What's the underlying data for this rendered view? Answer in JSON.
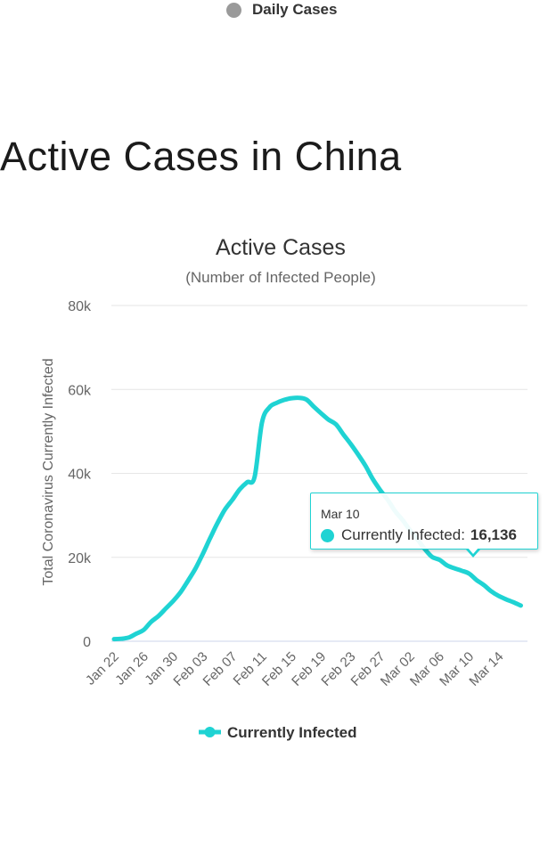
{
  "top_legend": {
    "label": "Daily Cases",
    "color": "#9a9a9a"
  },
  "section_heading": "Active Cases in China",
  "chart_data": {
    "type": "line",
    "title": "Active Cases",
    "subtitle": "(Number of Infected People)",
    "xlabel": "",
    "ylabel": "Total Coronavirus Currently Infected",
    "ylim": [
      0,
      80000
    ],
    "y_ticks": [
      0,
      20000,
      40000,
      60000,
      80000
    ],
    "y_tick_labels": [
      "0",
      "20k",
      "40k",
      "60k",
      "80k"
    ],
    "x_tick_labels": [
      "Jan 22",
      "Jan 26",
      "Jan 30",
      "Feb 03",
      "Feb 07",
      "Feb 11",
      "Feb 15",
      "Feb 19",
      "Feb 23",
      "Feb 27",
      "Mar 02",
      "Mar 06",
      "Mar 10",
      "Mar 14"
    ],
    "grid": true,
    "legend_position": "bottom",
    "series": [
      {
        "name": "Currently Infected",
        "color": "#1fd3d3",
        "x": [
          "Jan 22",
          "Jan 23",
          "Jan 24",
          "Jan 25",
          "Jan 26",
          "Jan 27",
          "Jan 28",
          "Jan 29",
          "Jan 30",
          "Jan 31",
          "Feb 01",
          "Feb 02",
          "Feb 03",
          "Feb 04",
          "Feb 05",
          "Feb 06",
          "Feb 07",
          "Feb 08",
          "Feb 09",
          "Feb 10",
          "Feb 11",
          "Feb 12",
          "Feb 13",
          "Feb 14",
          "Feb 15",
          "Feb 16",
          "Feb 17",
          "Feb 18",
          "Feb 19",
          "Feb 20",
          "Feb 21",
          "Feb 22",
          "Feb 23",
          "Feb 24",
          "Feb 25",
          "Feb 26",
          "Feb 27",
          "Feb 28",
          "Feb 29",
          "Mar 01",
          "Mar 02",
          "Mar 03",
          "Mar 04",
          "Mar 05",
          "Mar 06",
          "Mar 07",
          "Mar 08",
          "Mar 09",
          "Mar 10",
          "Mar 11",
          "Mar 12",
          "Mar 13",
          "Mar 14",
          "Mar 15",
          "Mar 16",
          "Mar 17"
        ],
        "values": [
          500,
          600,
          900,
          1800,
          2700,
          4600,
          6000,
          7800,
          9600,
          11700,
          14400,
          17300,
          20800,
          24600,
          28200,
          31400,
          33700,
          36200,
          37900,
          39100,
          52100,
          55700,
          56800,
          57500,
          57900,
          58000,
          57600,
          55900,
          54300,
          52800,
          51700,
          49300,
          47000,
          44500,
          41800,
          38600,
          36000,
          33700,
          31000,
          28900,
          26500,
          24300,
          22000,
          20100,
          19400,
          18100,
          17400,
          16800,
          16136,
          14600,
          13400,
          11900,
          10800,
          10000,
          9300,
          8500
        ]
      }
    ],
    "tooltip": {
      "date": "Mar 10",
      "series_name": "Currently Infected",
      "value_label": "16,136",
      "index": 48
    }
  }
}
